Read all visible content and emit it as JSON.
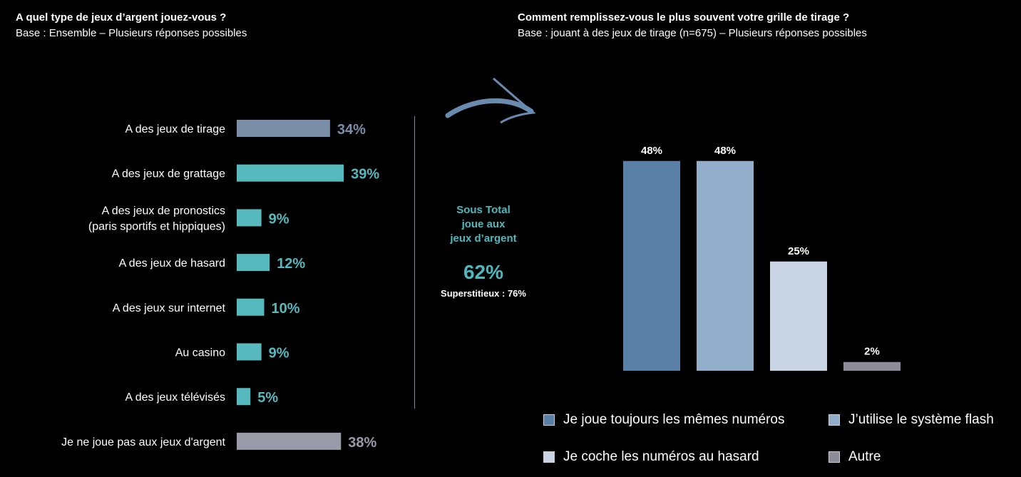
{
  "left": {
    "title": "A quel type de jeux d’argent jouez-vous ?",
    "subtitle": "Base : Ensemble – Plusieurs réponses possibles"
  },
  "right": {
    "title": "Comment remplissez-vous le plus souvent votre grille de tirage ?",
    "subtitle": "Base : jouant à des jeux de tirage (n=675) – Plusieurs réponses possibles"
  },
  "subtotal": {
    "line1": "Sous Total",
    "line2": "joue aux",
    "line3": "jeux d’argent",
    "value": "62%",
    "note": "Superstitieux : 76%"
  },
  "chart_data": [
    {
      "type": "bar",
      "orientation": "horizontal",
      "categories": [
        [
          "A des jeux de tirage"
        ],
        [
          "A des jeux de grattage"
        ],
        [
          "A des jeux de pronostics",
          "(paris sportifs et hippiques)"
        ],
        [
          "A des jeux de hasard"
        ],
        [
          "A des jeux sur internet"
        ],
        [
          "Au casino"
        ],
        [
          "A des jeux télévisés"
        ],
        [
          "Je ne joue pas aux jeux d'argent"
        ]
      ],
      "values": [
        34,
        39,
        9,
        12,
        10,
        9,
        5,
        38
      ],
      "labels": [
        "34%",
        "39%",
        "9%",
        "12%",
        "10%",
        "9%",
        "5%",
        "38%"
      ],
      "colors": [
        "#7b8ea8",
        "#56b9be",
        "#56b9be",
        "#56b9be",
        "#56b9be",
        "#56b9be",
        "#56b9be",
        "#9a9aa8"
      ],
      "label_colors": [
        "#7b8ea8",
        "#56b9be",
        "#56b9be",
        "#56b9be",
        "#56b9be",
        "#56b9be",
        "#56b9be",
        "#9a9aa8"
      ]
    },
    {
      "type": "bar",
      "categories": [
        "Je joue toujours les mêmes numéros",
        "J’utilise le système flash",
        "Je coche les numéros au hasard",
        "Autre"
      ],
      "values": [
        48,
        48,
        25,
        2
      ],
      "labels": [
        "48%",
        "48%",
        "25%",
        "2%"
      ],
      "colors": [
        "#5b80a8",
        "#93aecb",
        "#c8d4e3",
        "#8e8c99"
      ],
      "legend": "bottom"
    }
  ]
}
